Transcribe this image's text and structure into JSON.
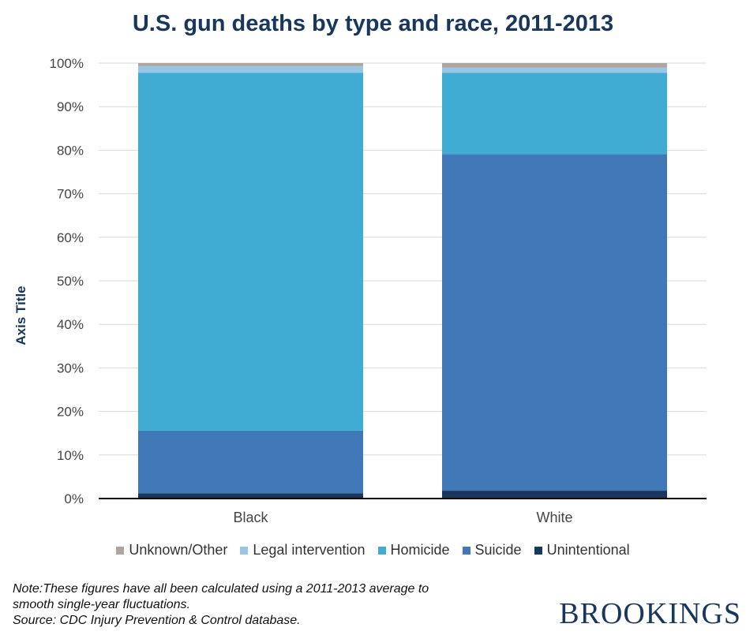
{
  "title": "U.S. gun deaths by type and race, 2011-2013",
  "chart_data": {
    "type": "bar",
    "stacked": true,
    "normalized_percent": true,
    "categories": [
      "Black",
      "White"
    ],
    "ylabel": "Axis Title",
    "ylim": [
      0,
      100
    ],
    "y_ticks": [
      "0%",
      "10%",
      "20%",
      "30%",
      "40%",
      "50%",
      "60%",
      "70%",
      "80%",
      "90%",
      "100%"
    ],
    "grid": true,
    "legend_position": "bottom",
    "series": [
      {
        "name": "Unintentional",
        "color": "#17375e",
        "values": [
          1.2,
          1.8
        ]
      },
      {
        "name": "Suicide",
        "color": "#4078b8",
        "values": [
          14.4,
          77.3
        ]
      },
      {
        "name": "Homicide",
        "color": "#41acd3",
        "values": [
          82.2,
          18.7
        ]
      },
      {
        "name": "Legal intervention",
        "color": "#98c6e4",
        "values": [
          1.5,
          1.2
        ]
      },
      {
        "name": "Unknown/Other",
        "color": "#aea69c",
        "values": [
          0.7,
          1.0
        ]
      }
    ],
    "legend_order": [
      "Unknown/Other",
      "Legal intervention",
      "Homicide",
      "Suicide",
      "Unintentional"
    ]
  },
  "note": {
    "line1": "Note:These figures have all been calculated using a 2011-2013 average to",
    "line2": "smooth single-year fluctuations.",
    "line3": "Source: CDC Injury Prevention & Control database."
  },
  "logo": "BROOKINGS"
}
